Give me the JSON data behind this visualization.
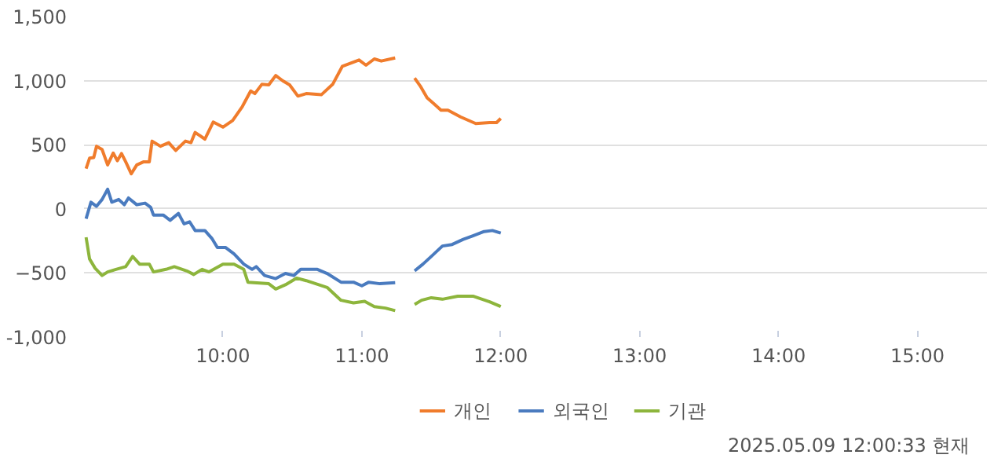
{
  "chart_data": {
    "type": "line",
    "xlim": [
      9,
      15.5
    ],
    "ylim": [
      -1000,
      1500
    ],
    "xticks": [
      {
        "value": 10,
        "label": "10:00"
      },
      {
        "value": 11,
        "label": "11:00"
      },
      {
        "value": 12,
        "label": "12:00"
      },
      {
        "value": 13,
        "label": "13:00"
      },
      {
        "value": 14,
        "label": "14:00"
      },
      {
        "value": 15,
        "label": "15:00"
      }
    ],
    "yticks": [
      {
        "value": -1000,
        "label": "-1,000"
      },
      -500,
      0,
      500,
      {
        "value": 1000,
        "label": "1,000"
      },
      {
        "value": 1500,
        "label": "1,500"
      }
    ],
    "grid": "y",
    "legend": "bottom",
    "marker": "none",
    "line_style": "solid",
    "annotations": [
      "2025.05.09 12:00:33 현재"
    ],
    "series": [
      {
        "name": "개인",
        "color": "#f07c2c",
        "x": [
          9.015,
          9.04,
          9.07,
          9.09,
          9.13,
          9.17,
          9.21,
          9.24,
          9.27,
          9.3,
          9.34,
          9.38,
          9.43,
          9.47,
          9.49,
          9.55,
          9.61,
          9.66,
          9.73,
          9.77,
          9.8,
          9.87,
          9.93,
          10.0,
          10.07,
          10.14,
          10.2,
          10.23,
          10.28,
          10.33,
          10.38,
          10.43,
          10.48,
          10.54,
          10.6,
          10.71,
          10.79,
          10.86,
          10.98,
          11.03,
          11.09,
          11.14,
          11.24,
          11.31,
          11.38,
          11.42,
          11.47,
          11.52,
          11.57,
          11.62,
          11.71,
          11.82,
          11.92,
          11.97,
          12.0
        ],
        "values": [
          314,
          395,
          400,
          488,
          463,
          343,
          435,
          375,
          431,
          367,
          274,
          343,
          367,
          367,
          528,
          488,
          516,
          455,
          528,
          516,
          596,
          544,
          677,
          637,
          689,
          798,
          919,
          899,
          971,
          967,
          1040,
          999,
          967,
          879,
          899,
          891,
          971,
          1112,
          1161,
          1120,
          1169,
          1153,
          1177,
          null,
          1020,
          959,
          866,
          818,
          770,
          770,
          717,
          665,
          673,
          673,
          705
        ]
      },
      {
        "name": "외국인",
        "color": "#4a7bbf",
        "x": [
          9.015,
          9.05,
          9.09,
          9.13,
          9.17,
          9.2,
          9.25,
          9.29,
          9.32,
          9.38,
          9.44,
          9.48,
          9.5,
          9.57,
          9.62,
          9.68,
          9.72,
          9.76,
          9.8,
          9.87,
          9.92,
          9.96,
          10.02,
          10.08,
          10.15,
          10.21,
          10.24,
          10.3,
          10.38,
          10.45,
          10.51,
          10.56,
          10.68,
          10.75,
          10.85,
          10.94,
          11.0,
          11.05,
          11.13,
          11.24,
          11.31,
          11.38,
          11.44,
          11.5,
          11.58,
          11.65,
          11.73,
          11.8,
          11.88,
          11.94,
          12.0
        ],
        "values": [
          -77,
          52,
          20,
          73,
          153,
          52,
          73,
          32,
          85,
          32,
          44,
          12,
          -48,
          -48,
          -89,
          -36,
          -117,
          -101,
          -169,
          -169,
          -230,
          -302,
          -302,
          -351,
          -431,
          -472,
          -451,
          -520,
          -544,
          -504,
          -520,
          -472,
          -472,
          -504,
          -572,
          -572,
          -600,
          -572,
          -584,
          -576,
          null,
          -484,
          -431,
          -371,
          -290,
          -278,
          -238,
          -210,
          -177,
          -169,
          -189
        ]
      },
      {
        "name": "기관",
        "color": "#8db53c",
        "x": [
          9.015,
          9.04,
          9.08,
          9.13,
          9.17,
          9.23,
          9.3,
          9.35,
          9.4,
          9.47,
          9.5,
          9.59,
          9.65,
          9.74,
          9.79,
          9.85,
          9.9,
          10.0,
          10.08,
          10.15,
          10.18,
          10.33,
          10.38,
          10.45,
          10.53,
          10.6,
          10.75,
          10.85,
          10.94,
          11.02,
          11.09,
          11.17,
          11.24,
          11.31,
          11.38,
          11.43,
          11.5,
          11.58,
          11.69,
          11.8,
          11.92,
          12.0
        ],
        "values": [
          -222,
          -391,
          -463,
          -520,
          -492,
          -472,
          -451,
          -371,
          -431,
          -431,
          -492,
          -472,
          -451,
          -484,
          -512,
          -472,
          -492,
          -431,
          -431,
          -472,
          -572,
          -584,
          -625,
          -592,
          -540,
          -560,
          -613,
          -713,
          -733,
          -721,
          -762,
          -774,
          -794,
          null,
          -746,
          -713,
          -693,
          -705,
          -681,
          -681,
          -725,
          -762
        ]
      }
    ]
  }
}
